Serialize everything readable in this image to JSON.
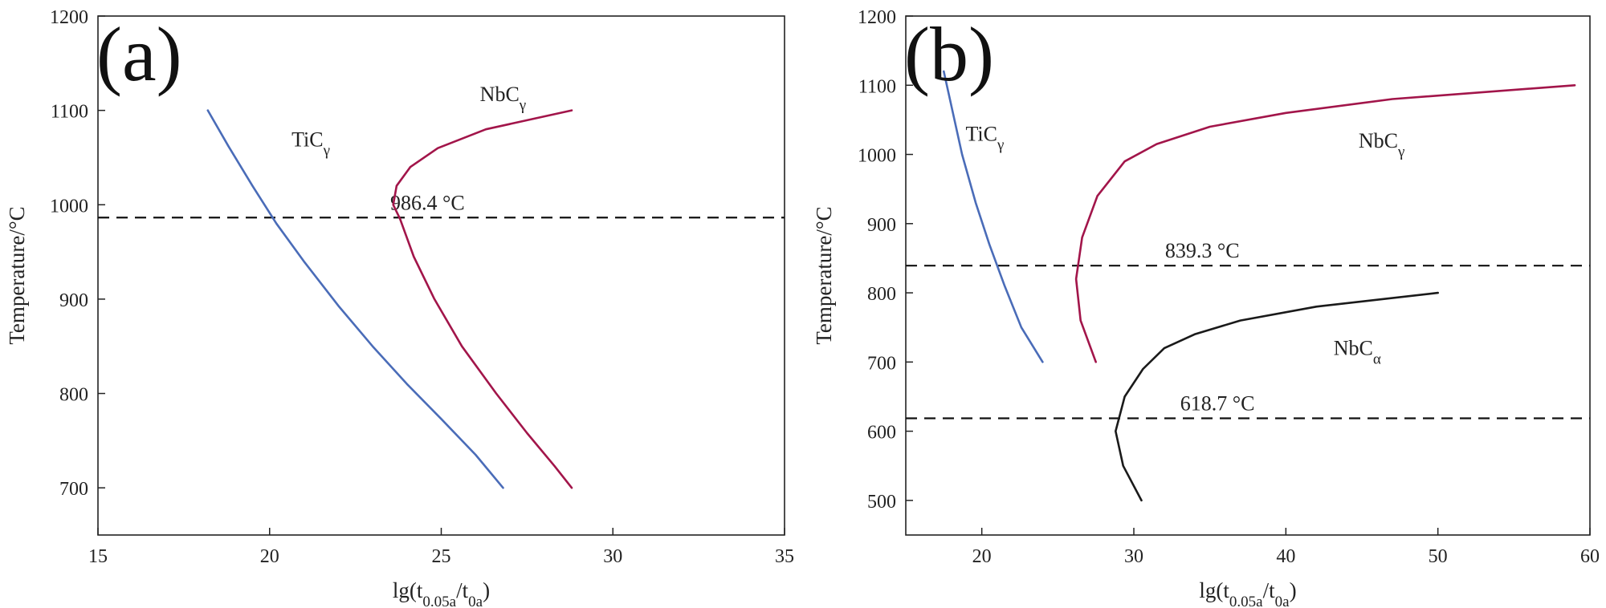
{
  "chart_data": [
    {
      "type": "line",
      "panel_label": "(a)",
      "xlabel": "lg(t0.05a/t0a)",
      "ylabel": "Temperature/°C",
      "xlim": [
        15,
        35
      ],
      "ylim": [
        650,
        1200
      ],
      "xticks": [
        15,
        20,
        25,
        30,
        35
      ],
      "yticks": [
        700,
        800,
        900,
        1000,
        1100,
        1200
      ],
      "hlines": [
        {
          "y": 986.4,
          "label": "986.4 °C",
          "label_x": 24.6
        }
      ],
      "series": [
        {
          "name": "TiCγ",
          "base": "TiC",
          "subscript": "γ",
          "color": "#4a6cb8",
          "label_pos": [
            21.2,
            1062
          ],
          "points": [
            [
              18.2,
              1100
            ],
            [
              18.8,
              1062
            ],
            [
              19.5,
              1020
            ],
            [
              20.2,
              980
            ],
            [
              21,
              940
            ],
            [
              22,
              893
            ],
            [
              23,
              850
            ],
            [
              24,
              810
            ],
            [
              25,
              773
            ],
            [
              26,
              735
            ],
            [
              26.8,
              700
            ]
          ]
        },
        {
          "name": "NbCγ",
          "base": "NbC",
          "subscript": "γ",
          "color": "#a2154a",
          "label_pos": [
            26.8,
            1110
          ],
          "points": [
            [
              28.8,
              700
            ],
            [
              28.3,
              723
            ],
            [
              27.5,
              758
            ],
            [
              26.6,
              800
            ],
            [
              25.6,
              850
            ],
            [
              24.8,
              900
            ],
            [
              24.2,
              945
            ],
            [
              23.8,
              985
            ],
            [
              23.6,
              1000
            ],
            [
              23.7,
              1020
            ],
            [
              24.1,
              1040
            ],
            [
              24.9,
              1060
            ],
            [
              26.3,
              1080
            ],
            [
              28.8,
              1100
            ]
          ]
        }
      ]
    },
    {
      "type": "line",
      "panel_label": "(b)",
      "xlabel": "lg(t0.05a/t0a)",
      "ylabel": "Temperature/°C",
      "xlim": [
        15,
        60
      ],
      "ylim": [
        450,
        1200
      ],
      "xticks": [
        20,
        30,
        40,
        50,
        60
      ],
      "yticks": [
        500,
        600,
        700,
        800,
        900,
        1000,
        1100,
        1200
      ],
      "hlines": [
        {
          "y": 839.3,
          "label": "839.3 °C",
          "label_x": 34.5
        },
        {
          "y": 618.7,
          "label": "618.7 °C",
          "label_x": 35.5
        }
      ],
      "series": [
        {
          "name": "TiCγ",
          "base": "TiC",
          "subscript": "γ",
          "color": "#4a6cb8",
          "label_pos": [
            20.2,
            1020
          ],
          "points": [
            [
              17.5,
              1120
            ],
            [
              18,
              1070
            ],
            [
              18.7,
              1000
            ],
            [
              19.6,
              930
            ],
            [
              20.5,
              870
            ],
            [
              21.5,
              810
            ],
            [
              22.6,
              750
            ],
            [
              24,
              700
            ]
          ]
        },
        {
          "name": "NbCγ",
          "base": "NbC",
          "subscript": "γ",
          "color": "#a2154a",
          "label_pos": [
            46.3,
            1010
          ],
          "points": [
            [
              27.5,
              700
            ],
            [
              26.5,
              760
            ],
            [
              26.2,
              820
            ],
            [
              26.6,
              880
            ],
            [
              27.6,
              940
            ],
            [
              29.4,
              990
            ],
            [
              31.5,
              1015
            ],
            [
              35,
              1040
            ],
            [
              40,
              1060
            ],
            [
              47,
              1080
            ],
            [
              59,
              1100
            ]
          ]
        },
        {
          "name": "NbCα",
          "base": "NbC",
          "subscript": "α",
          "color": "#1a1a1a",
          "label_pos": [
            44.7,
            710
          ],
          "points": [
            [
              30.5,
              500
            ],
            [
              29.3,
              550
            ],
            [
              28.8,
              600
            ],
            [
              29.4,
              650
            ],
            [
              30.6,
              690
            ],
            [
              32,
              720
            ],
            [
              34,
              740
            ],
            [
              37,
              760
            ],
            [
              42,
              780
            ],
            [
              50,
              800
            ]
          ]
        }
      ]
    }
  ]
}
